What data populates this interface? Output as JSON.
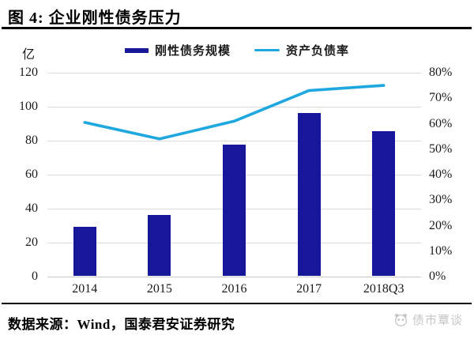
{
  "figure": {
    "title": "图 4: 企业刚性债务压力",
    "source_note": "数据来源：Wind，国泰君安证券研究",
    "watermark": "债市覃谈"
  },
  "colors": {
    "bar": "#17179b",
    "line": "#1fa8e0",
    "grid": "#dadada",
    "watermark": "#c6c6c6"
  },
  "chart_data": {
    "type": "bar",
    "subtype": "combo-bar-line-dual-axis",
    "categories": [
      "2014",
      "2015",
      "2016",
      "2017",
      "2018Q3"
    ],
    "series": [
      {
        "name": "刚性债务规模",
        "type": "bar",
        "axis": "left",
        "values": [
          29,
          36,
          77,
          96,
          85
        ],
        "color": "#17179b"
      },
      {
        "name": "资产负债率",
        "type": "line",
        "axis": "right",
        "values": [
          60.5,
          54,
          61,
          73,
          75
        ],
        "unit": "%",
        "color": "#1fa8e0"
      }
    ],
    "left_axis": {
      "unit_label": "亿",
      "min": 0,
      "max": 120,
      "step": 20,
      "ticks": [
        "120",
        "100",
        "80",
        "60",
        "40",
        "20",
        "0"
      ]
    },
    "right_axis": {
      "min": 0,
      "max": 80,
      "step": 10,
      "ticks": [
        "80%",
        "70%",
        "60%",
        "50%",
        "40%",
        "30%",
        "20%",
        "10%",
        "0%"
      ]
    },
    "grid": true,
    "legend_position": "top-center"
  }
}
